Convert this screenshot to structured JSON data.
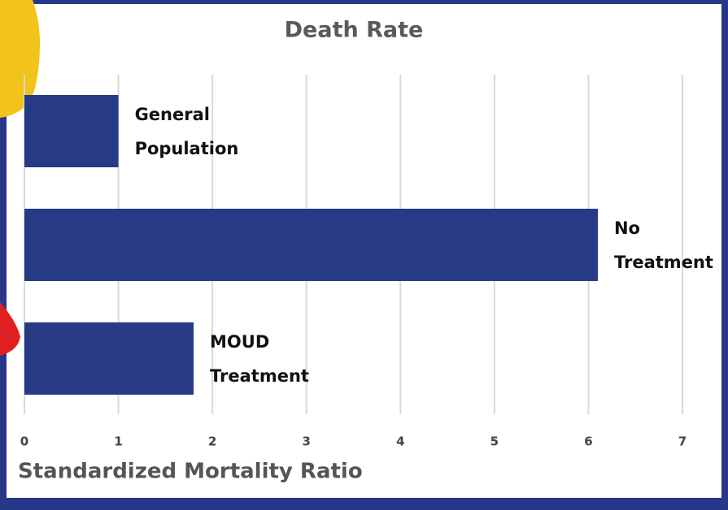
{
  "chart_data": {
    "type": "barh",
    "title": "Death Rate",
    "x_label": "Standardized Mortality Ratio",
    "categories": [
      "General Population",
      "No Treatment",
      "MOUD Treatment"
    ],
    "values": [
      1,
      6.1,
      1.8
    ],
    "color": "#263a85",
    "xlim": [
      0,
      7
    ],
    "xticks": [
      0,
      1,
      2,
      3,
      4,
      5,
      6,
      7
    ],
    "grid": true
  }
}
